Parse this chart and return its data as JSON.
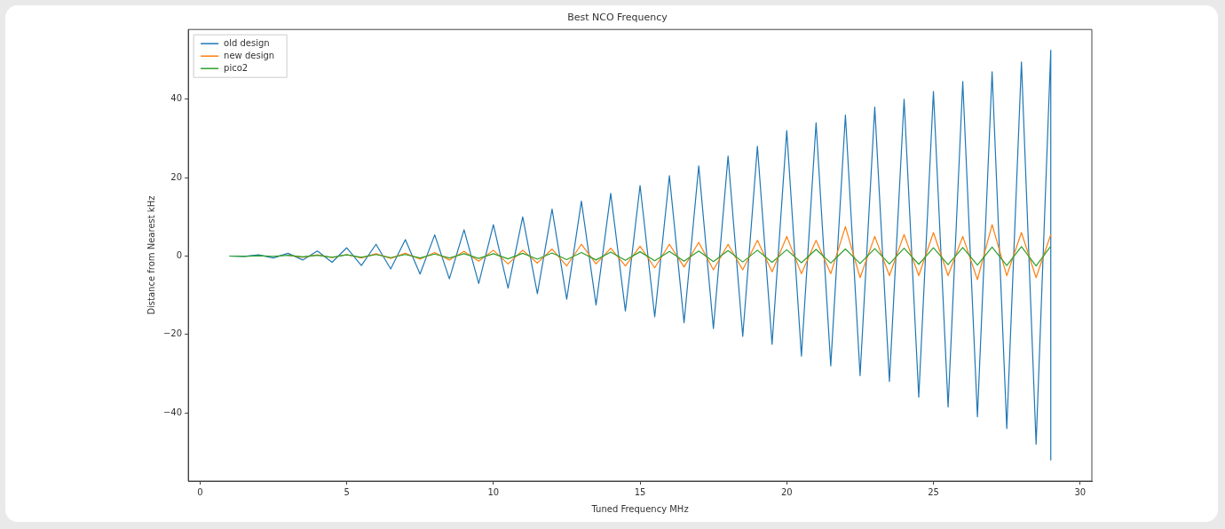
{
  "chart_data": {
    "type": "line",
    "title": "Best NCO Frequency",
    "xlabel": "Tuned Frequency MHz",
    "ylabel": "Distance from Nearest kHz",
    "xlim": [
      -0.4,
      30.4
    ],
    "xticks": [
      0,
      5,
      10,
      15,
      20,
      25,
      30
    ],
    "ylim": [
      -57.4,
      57.8
    ],
    "yticks": [
      -40,
      -20,
      0,
      20,
      40
    ],
    "grid": false,
    "legend": "top left",
    "marker": "none",
    "line_style": "solid",
    "series": [
      {
        "name": "old design",
        "color": "#1f77b4",
        "x": [
          1,
          1.5,
          2,
          2.5,
          3,
          3.5,
          4,
          4.5,
          5,
          5.5,
          6,
          6.5,
          7,
          7.5,
          8,
          8.5,
          9,
          9.5,
          10,
          10.5,
          11,
          11.5,
          12,
          12.5,
          13,
          13.5,
          14,
          14.5,
          15,
          15.5,
          16,
          16.5,
          17,
          17.5,
          18,
          18.5,
          19,
          19.5,
          20,
          20.5,
          21,
          21.5,
          22,
          22.5,
          23,
          23.5,
          24,
          24.5,
          25,
          25.5,
          26,
          26.5,
          27,
          27.5,
          28,
          28.5,
          29,
          29
        ],
        "values": [
          0,
          -0.1,
          0.3,
          -0.5,
          0.7,
          -1.0,
          1.3,
          -1.6,
          2.1,
          -2.4,
          3.0,
          -3.3,
          4.2,
          -4.6,
          5.4,
          -5.8,
          6.7,
          -7.0,
          8.0,
          -8.2,
          10,
          -9.6,
          12,
          -11,
          14,
          -12.5,
          16,
          -14,
          18,
          -15.5,
          20.5,
          -17,
          23,
          -18.5,
          25.5,
          -20.5,
          28,
          -22.5,
          32,
          -25.5,
          34,
          -28,
          36,
          -30.5,
          38,
          -32,
          40,
          -36,
          42,
          -38.5,
          44.5,
          -41,
          47,
          -44,
          49.5,
          -48,
          52.5,
          -52
        ]
      },
      {
        "name": "new design",
        "color": "#ff7f0e",
        "x": [
          3,
          3.5,
          4,
          4.5,
          5,
          5.5,
          6,
          6.5,
          7,
          7.5,
          8,
          8.5,
          9,
          9.5,
          10,
          10.5,
          11,
          11.5,
          12,
          12.5,
          13,
          13.5,
          14,
          14.5,
          15,
          15.5,
          16,
          16.5,
          17,
          17.5,
          18,
          18.5,
          19,
          19.5,
          20,
          20.5,
          21,
          21.5,
          22,
          22.5,
          23,
          23.5,
          24,
          24.5,
          25,
          25.5,
          26,
          26.5,
          27,
          27.5,
          28,
          28.5,
          29
        ],
        "values": [
          0.2,
          -0.3,
          0.3,
          -0.4,
          0.4,
          -0.5,
          0.6,
          -0.6,
          0.7,
          -0.8,
          0.9,
          -1.0,
          1.2,
          -1.3,
          1.5,
          -2.0,
          1.5,
          -1.8,
          1.8,
          -2.5,
          3,
          -2,
          2,
          -2.5,
          2.5,
          -3,
          3,
          -2.8,
          3.5,
          -3.5,
          3,
          -3.5,
          4,
          -4,
          5,
          -4.5,
          4,
          -4.5,
          7.5,
          -5.5,
          5,
          -5,
          5.5,
          -5,
          6,
          -5,
          5,
          -6,
          8,
          -5,
          6,
          -5.5,
          5.5
        ]
      },
      {
        "name": "pico2",
        "color": "#2ca02c",
        "x": [
          1,
          1.5,
          2,
          2.5,
          3,
          3.5,
          4,
          4.5,
          5,
          5.5,
          6,
          6.5,
          7,
          7.5,
          8,
          8.5,
          9,
          9.5,
          10,
          10.5,
          11,
          11.5,
          12,
          12.5,
          13,
          13.5,
          14,
          14.5,
          15,
          15.5,
          16,
          16.5,
          17,
          17.5,
          18,
          18.5,
          19,
          19.5,
          20,
          20.5,
          21,
          21.5,
          22,
          22.5,
          23,
          23.5,
          24,
          24.5,
          25,
          25.5,
          26,
          26.5,
          27,
          27.5,
          28,
          28.5,
          29
        ],
        "values": [
          0,
          -0.1,
          0.1,
          -0.1,
          0.2,
          -0.2,
          0.2,
          -0.3,
          0.3,
          -0.3,
          0.4,
          -0.4,
          0.4,
          -0.5,
          0.5,
          -0.5,
          0.6,
          -0.6,
          0.6,
          -0.7,
          0.7,
          -0.8,
          0.8,
          -0.9,
          0.9,
          -1.0,
          1.0,
          -1.1,
          1.1,
          -1.2,
          1.2,
          -1.3,
          1.3,
          -1.4,
          1.4,
          -1.5,
          1.5,
          -1.6,
          1.6,
          -1.7,
          1.7,
          -1.8,
          1.8,
          -1.9,
          1.9,
          -2.0,
          2.0,
          -2.1,
          2.1,
          -2.2,
          2.2,
          -2.3,
          2.3,
          -2.4,
          2.4,
          -2.5,
          2.5
        ]
      }
    ]
  }
}
